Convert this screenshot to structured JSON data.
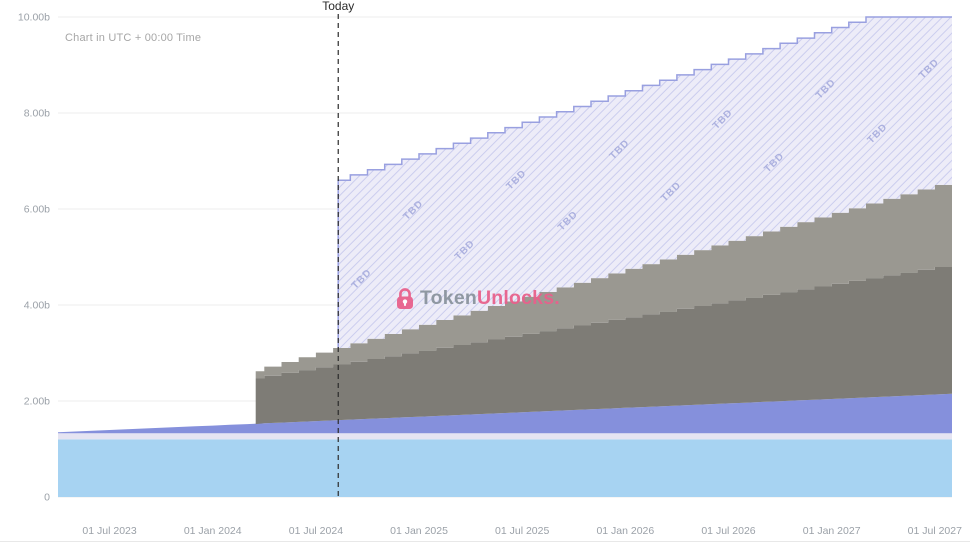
{
  "header": {
    "utc_note": "Chart in UTC + 00:00 Time"
  },
  "watermark": {
    "brand_gray": "Token",
    "brand_pink": "Unlocks.",
    "pink": "#e8618c",
    "gray": "#8b949e"
  },
  "chart_data": {
    "type": "area",
    "stacked": true,
    "title": "",
    "description": "Token unlock schedule: stacked allocation areas over time with hatched TBD future region",
    "x_axis": {
      "unit": "month-index (0 = Apr 2023)",
      "range": [
        0,
        52
      ],
      "ticks": [
        {
          "m": 3,
          "label": "01 Jul 2023"
        },
        {
          "m": 9,
          "label": "01 Jan 2024"
        },
        {
          "m": 15,
          "label": "01 Jul 2024"
        },
        {
          "m": 21,
          "label": "01 Jan 2025"
        },
        {
          "m": 27,
          "label": "01 Jul 2025"
        },
        {
          "m": 33,
          "label": "01 Jan 2026"
        },
        {
          "m": 39,
          "label": "01 Jul 2026"
        },
        {
          "m": 45,
          "label": "01 Jan 2027"
        },
        {
          "m": 51,
          "label": "01 Jul 2027"
        }
      ]
    },
    "y_axis": {
      "unit": "tokens (billions)",
      "range": [
        0,
        10
      ],
      "ticks": [
        {
          "v": 0,
          "label": "0"
        },
        {
          "v": 2,
          "label": "2.00b"
        },
        {
          "v": 4,
          "label": "4.00b"
        },
        {
          "v": 6,
          "label": "6.00b"
        },
        {
          "v": 8,
          "label": "8.00b"
        },
        {
          "v": 10,
          "label": "10.00b"
        }
      ]
    },
    "today": {
      "m": 16.3,
      "label": "Today"
    },
    "grid": true,
    "legend": "none",
    "colors": {
      "grid": "#ececec",
      "axis_text": "#9ba1a8",
      "today_line": "#2b2b2b"
    },
    "series": [
      {
        "name": "layer-1-bottom",
        "color": "#a7d3f2",
        "render": "smooth",
        "keyframes": [
          [
            0,
            1.2
          ],
          [
            52,
            1.2
          ]
        ]
      },
      {
        "name": "layer-2-band",
        "color": "#e5e4f2",
        "render": "smooth",
        "keyframes": [
          [
            0,
            0.13
          ],
          [
            52,
            0.13
          ]
        ]
      },
      {
        "name": "layer-3-mid",
        "color": "#8590dc",
        "render": "smooth",
        "keyframes": [
          [
            0,
            0.02
          ],
          [
            52,
            0.82
          ]
        ]
      },
      {
        "name": "layer-4-dark",
        "color": "#7e7c76",
        "render": "step",
        "start_month": 11.5,
        "keyframes": [
          [
            11,
            0.95
          ],
          [
            52,
            2.7
          ]
        ]
      },
      {
        "name": "layer-5-light",
        "color": "#9a9891",
        "render": "step",
        "start_month": 11.5,
        "keyframes": [
          [
            11,
            0.15
          ],
          [
            52,
            1.75
          ]
        ]
      },
      {
        "name": "tbd-future",
        "label": "TBD",
        "render": "step-hatch",
        "start_month": 16.3,
        "top_keyframes": [
          [
            16,
            6.6
          ],
          [
            47,
            10
          ],
          [
            52,
            10
          ]
        ],
        "fill": "#edecf8",
        "stripe": "#cbcdee",
        "edge": "#99a0e0",
        "text_color": "#a9aede"
      }
    ]
  }
}
